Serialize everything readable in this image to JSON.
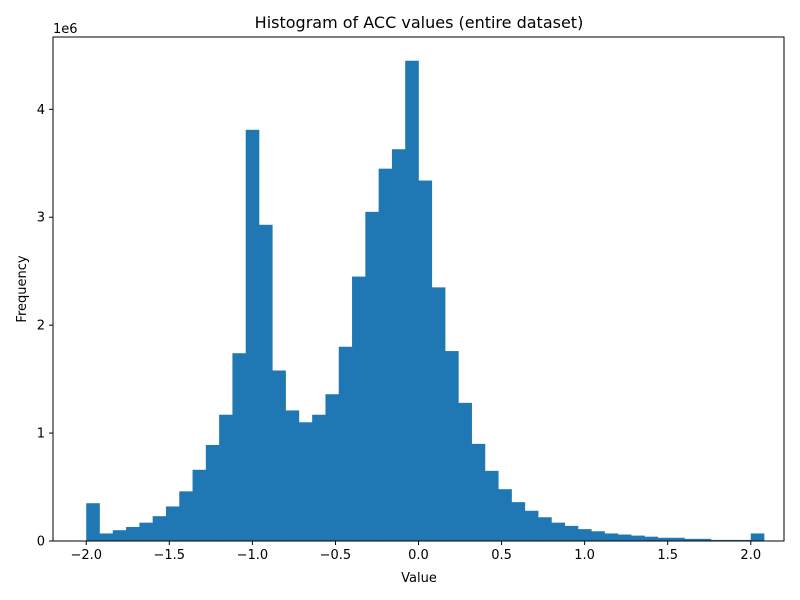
{
  "chart_data": {
    "type": "bar",
    "title": "Histogram of ACC values (entire dataset)",
    "xlabel": "Value",
    "ylabel": "Frequency",
    "y_offset_label": "1e6",
    "y_scale": 1000000,
    "bar_color": "#1f77b4",
    "bin_start": -2.0,
    "bin_width": 0.08,
    "xlim": [
      -2.2,
      2.2
    ],
    "ylim": [
      0,
      4.67
    ],
    "xticks": [
      -2.0,
      -1.5,
      -1.0,
      -0.5,
      0.0,
      0.5,
      1.0,
      1.5,
      2.0
    ],
    "xtick_labels": [
      "−2.0",
      "−1.5",
      "−1.0",
      "−0.5",
      "0.0",
      "0.5",
      "1.0",
      "1.5",
      "2.0"
    ],
    "yticks": [
      0,
      1,
      2,
      3,
      4
    ],
    "ytick_labels": [
      "0",
      "1",
      "2",
      "3",
      "4"
    ],
    "grid": false,
    "values_in_millions": [
      0.35,
      0.07,
      0.1,
      0.13,
      0.17,
      0.23,
      0.32,
      0.46,
      0.66,
      0.89,
      1.17,
      1.74,
      3.81,
      2.93,
      1.58,
      1.21,
      1.1,
      1.17,
      1.36,
      1.8,
      2.45,
      3.05,
      3.45,
      3.63,
      4.45,
      3.34,
      2.35,
      1.76,
      1.28,
      0.9,
      0.65,
      0.48,
      0.36,
      0.28,
      0.22,
      0.17,
      0.14,
      0.11,
      0.09,
      0.07,
      0.06,
      0.05,
      0.04,
      0.03,
      0.03,
      0.02,
      0.02,
      0.01,
      0.01,
      0.01,
      0.07
    ]
  }
}
